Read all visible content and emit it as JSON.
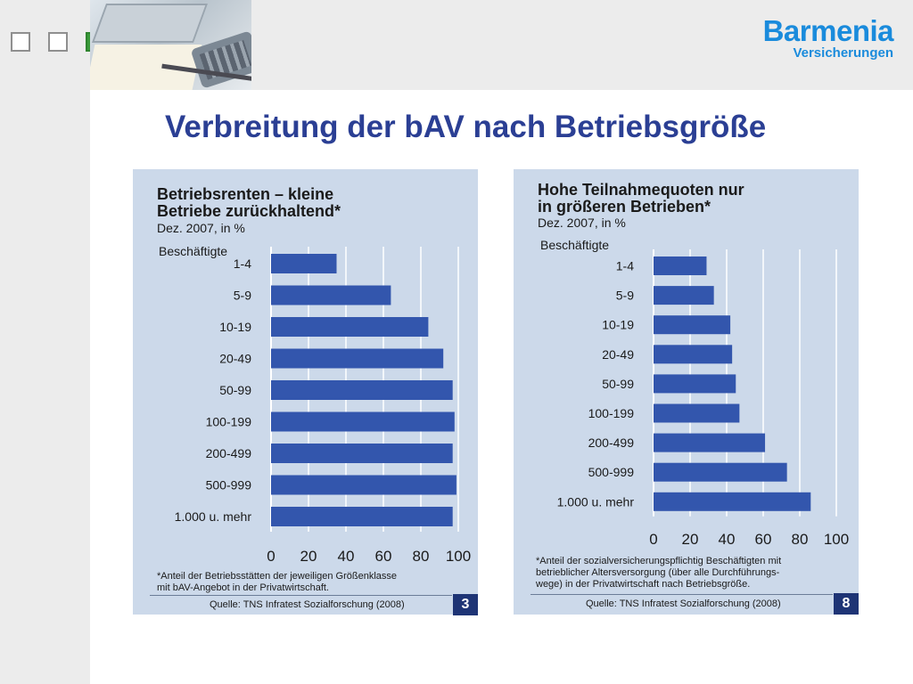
{
  "slide": {
    "title": "Verbreitung der bAV nach Betriebsgröße",
    "logo_line1": "Barmenia",
    "logo_line2": "Versicherungen",
    "colors": {
      "title": "#2b3f94",
      "logo": "#1a8bdc",
      "bar": "#3356ad",
      "panel": "#ccd9ea",
      "accent_square": "#3a9a3a"
    }
  },
  "charts": [
    {
      "title_line1": "Betriebsrenten – kleine",
      "title_line2": "Betriebe zurückhaltend*",
      "subtitle": "Dez. 2007, in %",
      "category_header": "Beschäftigte",
      "footnote_line1": "*Anteil der Betriebsstätten der jeweiligen Größenklasse",
      "footnote_line2": "mit bAV-Angebot in der Privatwirtschaft.",
      "source": "Quelle: TNS Infratest Sozialforschung (2008)",
      "badge": "3"
    },
    {
      "title_line1": "Hohe Teilnahmequoten nur",
      "title_line2": "in größeren Betrieben*",
      "subtitle": "Dez. 2007, in %",
      "category_header": "Beschäftigte",
      "footnote_line1": "*Anteil der sozialversicherungspflichtig Beschäftigten mit",
      "footnote_line2": "betrieblicher Altersversorgung   (über alle Durchführungs-",
      "footnote_line3": "wege) in der Privatwirtschaft nach Betriebsgröße.",
      "source": "Quelle: TNS Infratest Sozialforschung (2008)",
      "badge": "8"
    }
  ],
  "chart_data": [
    {
      "type": "bar",
      "orientation": "horizontal",
      "title": "Betriebsrenten – kleine Betriebe zurückhaltend*",
      "categories": [
        "1-4",
        "5-9",
        "10-19",
        "20-49",
        "50-99",
        "100-199",
        "200-499",
        "500-999",
        "1.000 u. mehr"
      ],
      "values": [
        35,
        64,
        84,
        92,
        97,
        98,
        97,
        99,
        97
      ],
      "xlim": [
        0,
        100
      ],
      "xticks": [
        "0",
        "20",
        "40",
        "60",
        "80",
        "100"
      ],
      "grid": true
    },
    {
      "type": "bar",
      "orientation": "horizontal",
      "title": "Hohe Teilnahmequoten nur in größeren Betrieben*",
      "categories": [
        "1-4",
        "5-9",
        "10-19",
        "20-49",
        "50-99",
        "100-199",
        "200-499",
        "500-999",
        "1.000 u. mehr"
      ],
      "values": [
        29,
        33,
        42,
        43,
        45,
        47,
        61,
        73,
        86
      ],
      "xlim": [
        0,
        100
      ],
      "xticks": [
        "0",
        "20",
        "40",
        "60",
        "80",
        "100"
      ],
      "grid": true
    }
  ]
}
